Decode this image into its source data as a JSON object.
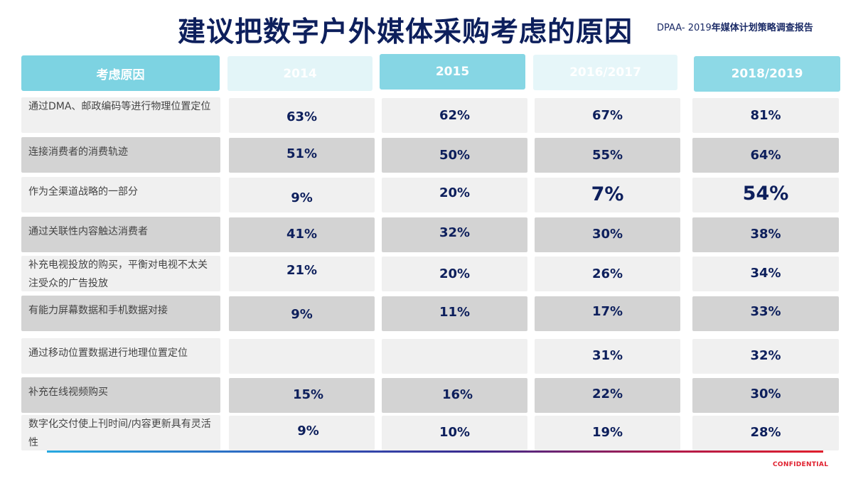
{
  "title": "建议把数字户外媒体采购考虑的原因",
  "source_prefix": "DPAA- 2019",
  "source_suffix": "年媒体计划策略调查报告",
  "headers": {
    "reason": "考虑原因",
    "y2014": "2014",
    "y2015": "2015",
    "y2016": "2016/2017",
    "y2018": "2018/2019"
  },
  "rows": [
    {
      "reason": "通过DMA、邮政编码等进行物理位置定位",
      "v2014": "63%",
      "v2015": "62%",
      "v2016": "67%",
      "v2018": "81%"
    },
    {
      "reason": "连接消费者的消费轨迹",
      "v2014": "51%",
      "v2015": "50%",
      "v2016": "55%",
      "v2018": "64%"
    },
    {
      "reason": "作为全渠道战略的一部分",
      "v2014": "9%",
      "v2015": "20%",
      "v2016": "7%",
      "v2018": "54%"
    },
    {
      "reason": "通过关联性内容触达消费者",
      "v2014": "41%",
      "v2015": "32%",
      "v2016": "30%",
      "v2018": "38%"
    },
    {
      "reason": "补充电视投放的购买，平衡对电视不太关注受众的广告投放",
      "v2014": "21%",
      "v2015": "20%",
      "v2016": "26%",
      "v2018": "34%"
    },
    {
      "reason": "有能力屏幕数据和手机数据对接",
      "v2014": "9%",
      "v2015": "11%",
      "v2016": "17%",
      "v2018": "33%"
    },
    {
      "reason": "通过移动位置数据进行地理位置定位",
      "v2014": "",
      "v2015": "",
      "v2016": "31%",
      "v2018": "32%"
    },
    {
      "reason": "补充在线视频购买",
      "v2014": "15%",
      "v2015": "16%",
      "v2016": "22%",
      "v2018": "30%"
    },
    {
      "reason": "数字化交付使上刊时间/内容更新具有灵活性",
      "v2014": "9%",
      "v2015": "10%",
      "v2016": "19%",
      "v2018": "28%"
    }
  ],
  "footer": {
    "confidential": "CONFIDENTIAL"
  },
  "colors": {
    "title": "#0d1f5c",
    "header_accent": "#7dd3e2",
    "row_light": "#f0f0f0",
    "row_dark": "#d3d3d3",
    "value_text": "#0d1f5c",
    "confidential": "#e01f2d"
  }
}
